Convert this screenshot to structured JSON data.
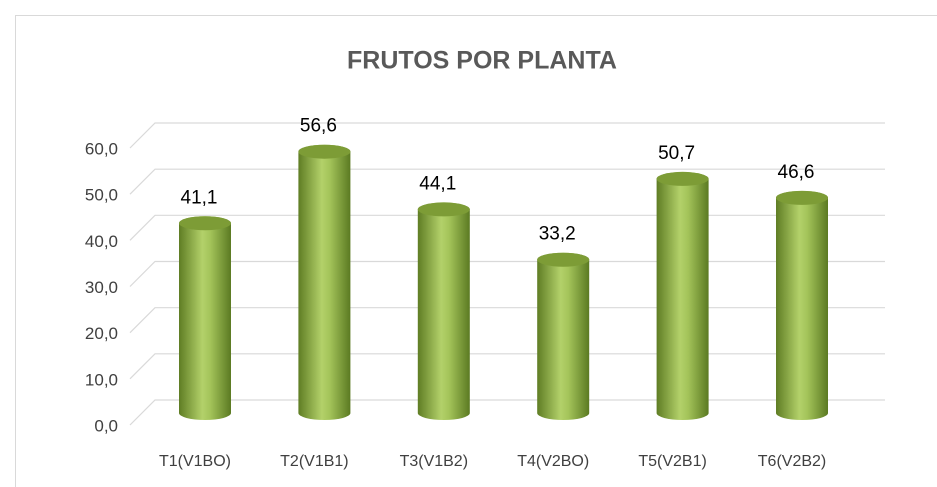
{
  "chart_data": {
    "type": "bar",
    "title": "FRUTOS POR PLANTA",
    "categories": [
      "T1(V1BO)",
      "T2(V1B1)",
      "T3(V1B2)",
      "T4(V2BO)",
      "T5(V2B1)",
      "T6(V2B2)"
    ],
    "values": [
      41.1,
      56.6,
      44.1,
      33.2,
      50.7,
      46.6
    ],
    "value_labels": [
      "41,1",
      "56,6",
      "44,1",
      "33,2",
      "50,7",
      "46,6"
    ],
    "color": "#9bbb59",
    "ylim": [
      0,
      60
    ],
    "yticks": [
      {
        "value": 0,
        "label": "0,0"
      },
      {
        "value": 10,
        "label": "10,0"
      },
      {
        "value": 20,
        "label": "20,0"
      },
      {
        "value": 30,
        "label": "30,0"
      },
      {
        "value": 40,
        "label": "40,0"
      },
      {
        "value": 50,
        "label": "50,0"
      },
      {
        "value": 60,
        "label": "60,0"
      }
    ],
    "grid": true
  }
}
